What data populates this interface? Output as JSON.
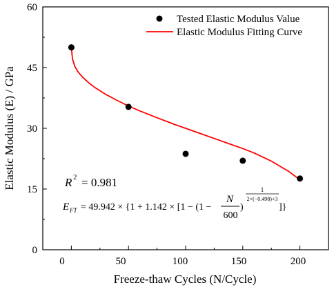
{
  "chart_data": {
    "type": "scatter",
    "xlabel": "Freeze-thaw Cycles (N/Cycle)",
    "ylabel": "Elastic Modulus (E) / GPa",
    "xlim": [
      -25,
      225
    ],
    "ylim": [
      0,
      60
    ],
    "x_ticks": [
      "0",
      "50",
      "100",
      "150",
      "200"
    ],
    "y_ticks": [
      "0",
      "15",
      "30",
      "45",
      "60"
    ],
    "legend_position": "top-right",
    "series": [
      {
        "name": "Tested Elastic Modulus Value",
        "kind": "points",
        "color": "#000000",
        "x": [
          0,
          50,
          100,
          150,
          200
        ],
        "y": [
          50.0,
          35.3,
          23.7,
          22.0,
          17.6
        ]
      },
      {
        "name": "Elastic Modulus Fitting Curve",
        "kind": "line",
        "color": "#ff0000",
        "x": [
          0,
          1,
          3,
          6,
          10,
          15,
          20,
          30,
          40,
          50,
          60,
          75,
          90,
          100,
          110,
          125,
          140,
          150,
          160,
          175,
          190,
          200
        ],
        "y": [
          49.9,
          47.1,
          45.3,
          43.9,
          42.6,
          41.3,
          40.2,
          38.4,
          36.9,
          35.5,
          34.3,
          32.6,
          31.0,
          30.0,
          29.0,
          27.5,
          26.0,
          25.0,
          23.9,
          21.9,
          19.4,
          17.3
        ]
      }
    ],
    "annotations": {
      "r2_label": "R",
      "r2_exp": "2",
      "r2_value": "= 0.981",
      "eq_lhs": "E",
      "eq_lhs_sub": "FT",
      "eq_body": "= 49.942 × {1 + 1.142 × [1 − (1 −",
      "eq_frac_num": "N",
      "eq_frac_den": "600",
      "eq_close": ")",
      "eq_exp_num": "1",
      "eq_exp_den": "2×(−0.498)+3",
      "eq_end": "]}"
    }
  }
}
